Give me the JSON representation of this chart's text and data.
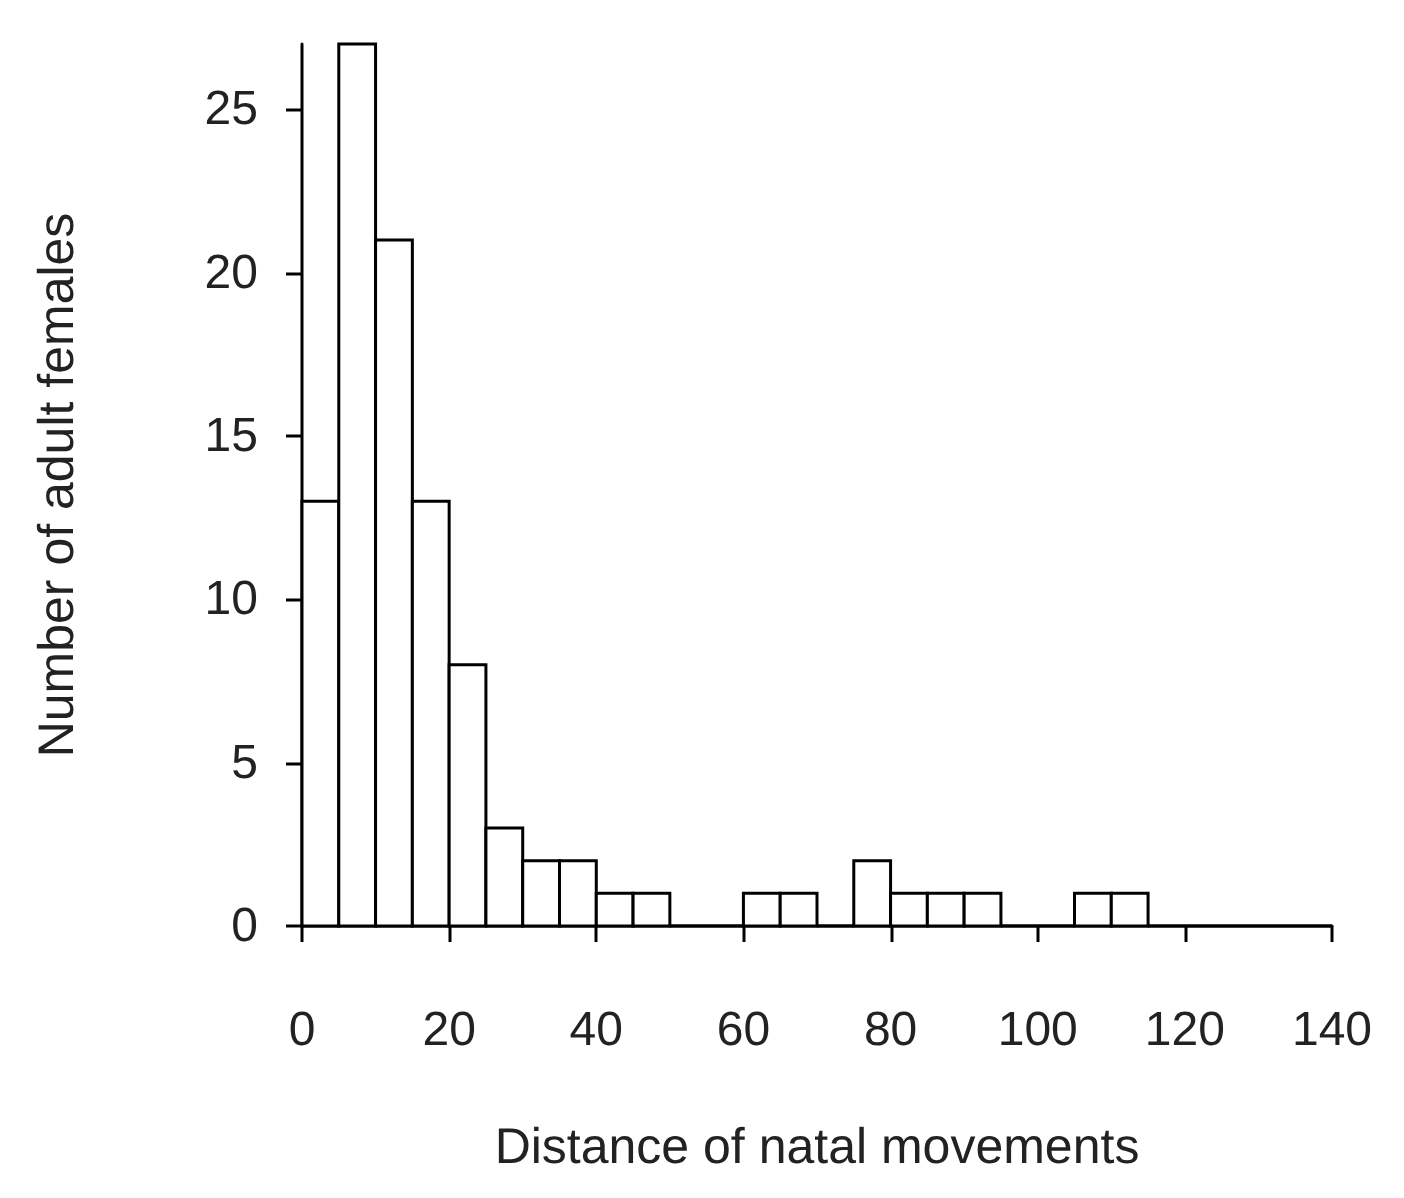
{
  "chart_data": {
    "type": "histogram",
    "xlabel": "Distance of natal movements",
    "ylabel": "Number of adult females",
    "bins": [
      0,
      5,
      10,
      15,
      20,
      25,
      30,
      35,
      40,
      45,
      50,
      55,
      60,
      65,
      70,
      75,
      80,
      85,
      90,
      95,
      100,
      105,
      110,
      115,
      120,
      125,
      130,
      135,
      140
    ],
    "values": [
      13,
      27,
      21,
      13,
      8,
      3,
      2,
      2,
      1,
      1,
      0,
      0,
      1,
      1,
      0,
      2,
      1,
      1,
      1,
      0,
      0,
      1,
      1,
      0,
      0,
      0,
      0,
      0
    ],
    "color": "#ffffff",
    "xlim": [
      0,
      140
    ],
    "xticks": [
      0,
      20,
      40,
      60,
      80,
      100,
      120,
      140
    ],
    "ylim": [
      0,
      27
    ],
    "yticks": [
      0,
      5,
      10,
      15,
      20,
      25
    ],
    "grid": false
  }
}
